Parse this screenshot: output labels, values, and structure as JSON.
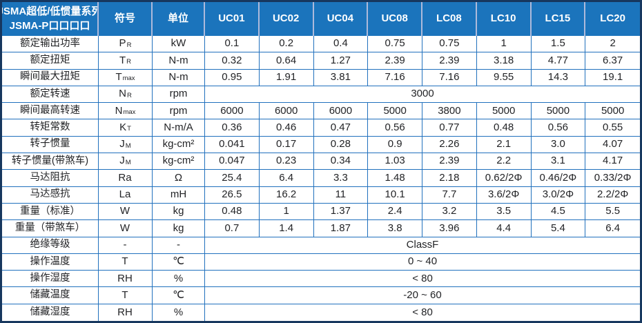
{
  "header": {
    "title_line1": "JSMA超低/低惯量系列",
    "title_line2": "JSMA-P口口口口",
    "symbol_col": "符号",
    "unit_col": "单位",
    "models": [
      "UC01",
      "UC02",
      "UC04",
      "UC08",
      "LC08",
      "LC10",
      "LC15",
      "LC20"
    ]
  },
  "colors": {
    "header_bg": "#1b74bc",
    "grid_line": "#2070bd",
    "outer_border": "#17375e",
    "header_separator": "#aebadb",
    "body_text": "#222326",
    "header_text": "#ffffff"
  },
  "rows": [
    {
      "label": "额定输出功率",
      "sym": "P",
      "sub": "R",
      "unit": "kW",
      "values": [
        "0.1",
        "0.2",
        "0.4",
        "0.75",
        "0.75",
        "1",
        "1.5",
        "2"
      ]
    },
    {
      "label": "额定扭矩",
      "sym": "T",
      "sub": "R",
      "unit": "N-m",
      "values": [
        "0.32",
        "0.64",
        "1.27",
        "2.39",
        "2.39",
        "3.18",
        "4.77",
        "6.37"
      ]
    },
    {
      "label": "瞬间最大扭矩",
      "sym": "T",
      "sub": "max",
      "unit": "N-m",
      "values": [
        "0.95",
        "1.91",
        "3.81",
        "7.16",
        "7.16",
        "9.55",
        "14.3",
        "19.1"
      ]
    },
    {
      "label": "额定转速",
      "sym": "N",
      "sub": "R",
      "unit": "rpm",
      "merged": "3000"
    },
    {
      "label": "瞬间最高转速",
      "sym": "N",
      "sub": "max",
      "unit": "rpm",
      "values": [
        "6000",
        "6000",
        "6000",
        "5000",
        "3800",
        "5000",
        "5000",
        "5000"
      ]
    },
    {
      "label": "转矩常数",
      "sym": "K",
      "sub": "T",
      "unit": "N-m/A",
      "values": [
        "0.36",
        "0.46",
        "0.47",
        "0.56",
        "0.77",
        "0.48",
        "0.56",
        "0.55"
      ]
    },
    {
      "label": "转子惯量",
      "sym": "J",
      "sub": "M",
      "unit": "kg-cm²",
      "values": [
        "0.041",
        "0.17",
        "0.28",
        "0.9",
        "2.26",
        "2.1",
        "3.0",
        "4.07"
      ]
    },
    {
      "label": "转子惯量(带煞车)",
      "sym": "J",
      "sub": "M",
      "unit": "kg-cm²",
      "values": [
        "0.047",
        "0.23",
        "0.34",
        "1.03",
        "2.39",
        "2.2",
        "3.1",
        "4.17"
      ]
    },
    {
      "label": "马达阻抗",
      "sym": "Ra",
      "sub": "",
      "unit": "Ω",
      "values": [
        "25.4",
        "6.4",
        "3.3",
        "1.48",
        "2.18",
        "0.62/2Φ",
        "0.46/2Φ",
        "0.33/2Φ"
      ]
    },
    {
      "label": "马达感抗",
      "sym": "La",
      "sub": "",
      "unit": "mH",
      "values": [
        "26.5",
        "16.2",
        "11",
        "10.1",
        "7.7",
        "3.6/2Φ",
        "3.0/2Φ",
        "2.2/2Φ"
      ]
    },
    {
      "label": "重量（标准）",
      "sym": "W",
      "sub": "",
      "unit": "kg",
      "values": [
        "0.48",
        "1",
        "1.37",
        "2.4",
        "3.2",
        "3.5",
        "4.5",
        "5.5"
      ]
    },
    {
      "label": "重量（带煞车）",
      "sym": "W",
      "sub": "",
      "unit": "kg",
      "values": [
        "0.7",
        "1.4",
        "1.87",
        "3.8",
        "3.96",
        "4.4",
        "5.4",
        "6.4"
      ]
    },
    {
      "label": "绝缘等级",
      "sym": "-",
      "sub": "",
      "unit": "-",
      "merged": "ClassF"
    },
    {
      "label": "操作温度",
      "sym": "T",
      "sub": "",
      "unit": "℃",
      "merged": "0 ~ 40"
    },
    {
      "label": "操作湿度",
      "sym": "RH",
      "sub": "",
      "unit": "%",
      "merged": "< 80"
    },
    {
      "label": "储藏温度",
      "sym": "T",
      "sub": "",
      "unit": "℃",
      "merged": "-20 ~ 60"
    },
    {
      "label": "储藏湿度",
      "sym": "RH",
      "sub": "",
      "unit": "%",
      "merged": "< 80"
    }
  ]
}
